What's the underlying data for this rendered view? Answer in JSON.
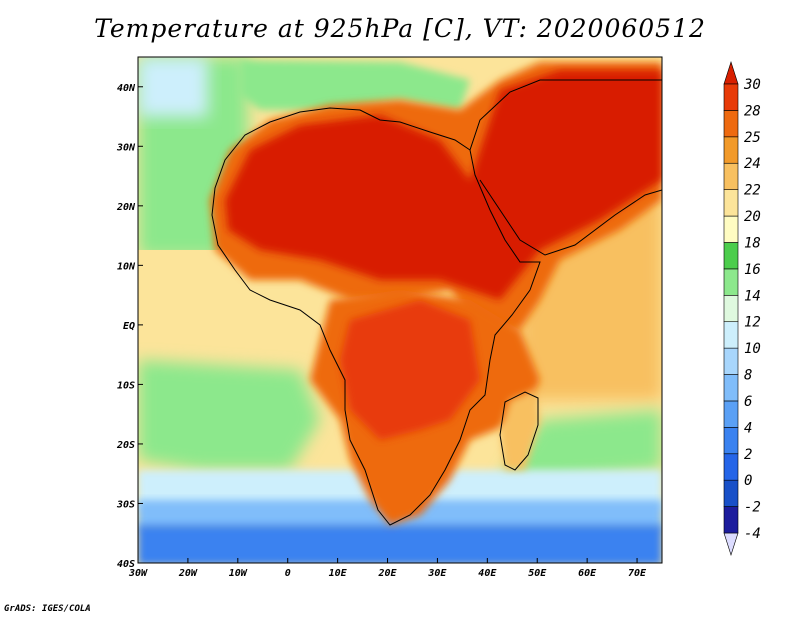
{
  "title": "Temperature at 925hPa [C], VT: 2020060512",
  "credit": "GrADS: IGES/COLA",
  "map": {
    "lon_range": [
      -30,
      75
    ],
    "lat_range": [
      -40,
      45
    ],
    "lon_ticks": [
      "30W",
      "20W",
      "10W",
      "0",
      "10E",
      "20E",
      "30E",
      "40E",
      "50E",
      "60E",
      "70E"
    ],
    "lat_ticks": [
      "40N",
      "30N",
      "20N",
      "10N",
      "EQ",
      "10S",
      "20S",
      "30S",
      "40S"
    ]
  },
  "colorbar": {
    "levels": [
      "-4",
      "-2",
      "0",
      "2",
      "4",
      "6",
      "8",
      "10",
      "12",
      "14",
      "16",
      "18",
      "20",
      "22",
      "24",
      "25",
      "28",
      "30"
    ],
    "colors": [
      "#dcdcff",
      "#1d1d9d",
      "#1850c8",
      "#2565e8",
      "#3a82f0",
      "#5aa0f5",
      "#80bdfa",
      "#a8d6fc",
      "#cdeffc",
      "#dff9df",
      "#8ce88c",
      "#4ccd4c",
      "#fffcc2",
      "#fce49a",
      "#f8c060",
      "#f29a2a",
      "#ee6a10",
      "#e83a08",
      "#d81f00"
    ]
  },
  "colors": {
    "hot": "#d82400",
    "warm": "#ee6a10",
    "orange": "#f4a036",
    "pale": "#fce49a",
    "ocean_green": "#80e080",
    "cool": "#a8d6fc",
    "cold": "#3a82f0"
  }
}
